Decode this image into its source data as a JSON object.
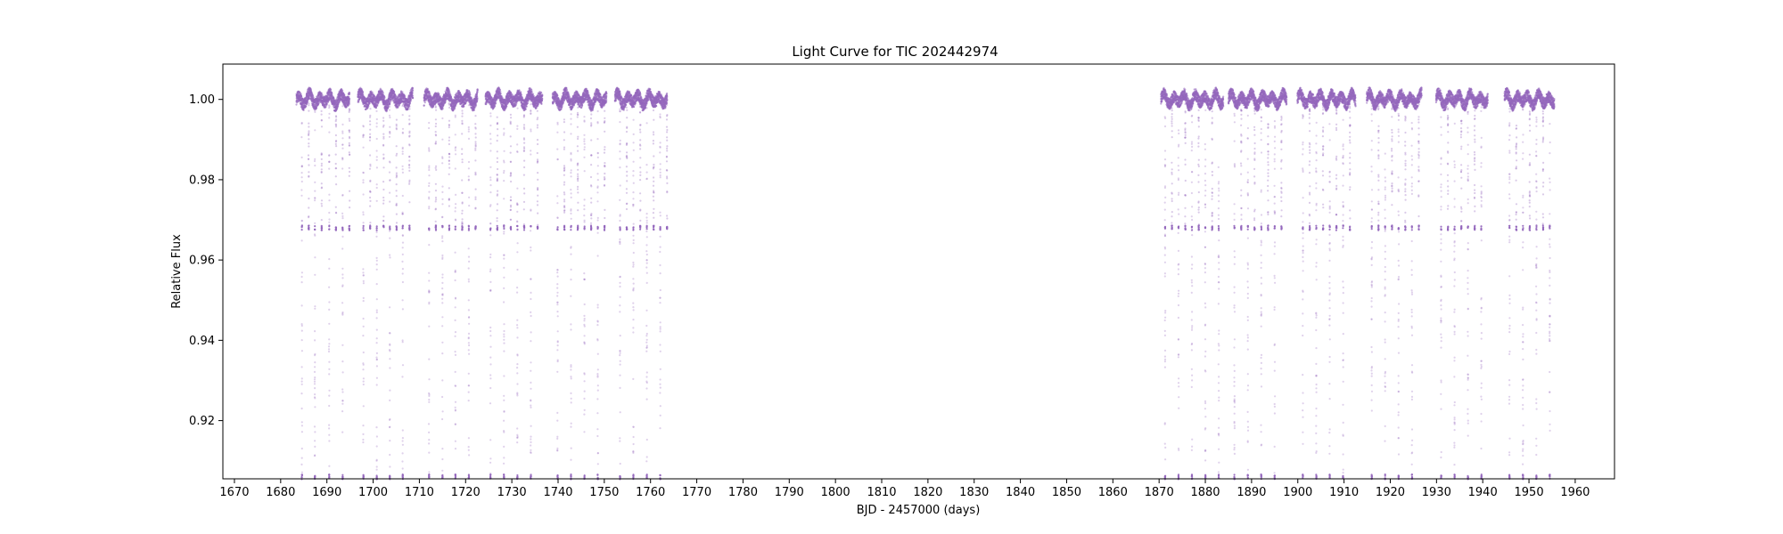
{
  "chart_data": {
    "type": "scatter",
    "title": "Light Curve for TIC 202442974",
    "xlabel": "BJD - 2457000 (days)",
    "ylabel": "Relative Flux",
    "xlim": [
      1667.5,
      1968.5
    ],
    "ylim": [
      0.9055,
      1.0088
    ],
    "x_ticks": [
      1670,
      1680,
      1690,
      1700,
      1710,
      1720,
      1730,
      1740,
      1750,
      1760,
      1770,
      1780,
      1790,
      1800,
      1810,
      1820,
      1830,
      1840,
      1850,
      1860,
      1870,
      1880,
      1890,
      1900,
      1910,
      1920,
      1930,
      1940,
      1950,
      1960
    ],
    "y_ticks": [
      0.92,
      0.94,
      0.96,
      0.98,
      1.0
    ],
    "y_tick_labels": [
      "0.92",
      "0.94",
      "0.96",
      "0.98",
      "1.00"
    ],
    "grid": false,
    "legend": "none",
    "marker_color": "#9467bd",
    "baseline_flux": 1.0,
    "eclipse_depths": {
      "secondary": 0.968,
      "primary": 0.906
    },
    "eclipse_period_days": 2.93,
    "observing_segments": [
      [
        1683.4,
        1694.9
      ],
      [
        1696.7,
        1708.6
      ],
      [
        1711.0,
        1722.6
      ],
      [
        1724.3,
        1736.6
      ],
      [
        1738.8,
        1750.5
      ],
      [
        1752.3,
        1763.6
      ],
      [
        1870.4,
        1883.9
      ],
      [
        1885.0,
        1897.6
      ],
      [
        1899.9,
        1912.5
      ],
      [
        1914.9,
        1926.8
      ],
      [
        1929.9,
        1941.1
      ],
      [
        1944.7,
        1955.5
      ]
    ],
    "primary_eclipse_times": [
      1684.6,
      1687.4,
      1690.5,
      1693.4,
      1697.9,
      1700.8,
      1703.6,
      1706.4,
      1712.1,
      1715.0,
      1717.8,
      1720.7,
      1725.4,
      1728.3,
      1731.2,
      1734.1,
      1739.9,
      1742.8,
      1745.7,
      1748.6,
      1753.4,
      1756.3,
      1759.2,
      1762.1,
      1871.3,
      1874.2,
      1877.1,
      1880.0,
      1882.9,
      1886.3,
      1889.2,
      1892.1,
      1895.0,
      1901.1,
      1904.0,
      1906.9,
      1909.8,
      1916.0,
      1918.9,
      1921.8,
      1924.7,
      1931.0,
      1933.9,
      1936.8,
      1939.7,
      1945.8,
      1948.7,
      1951.6,
      1954.5
    ]
  }
}
